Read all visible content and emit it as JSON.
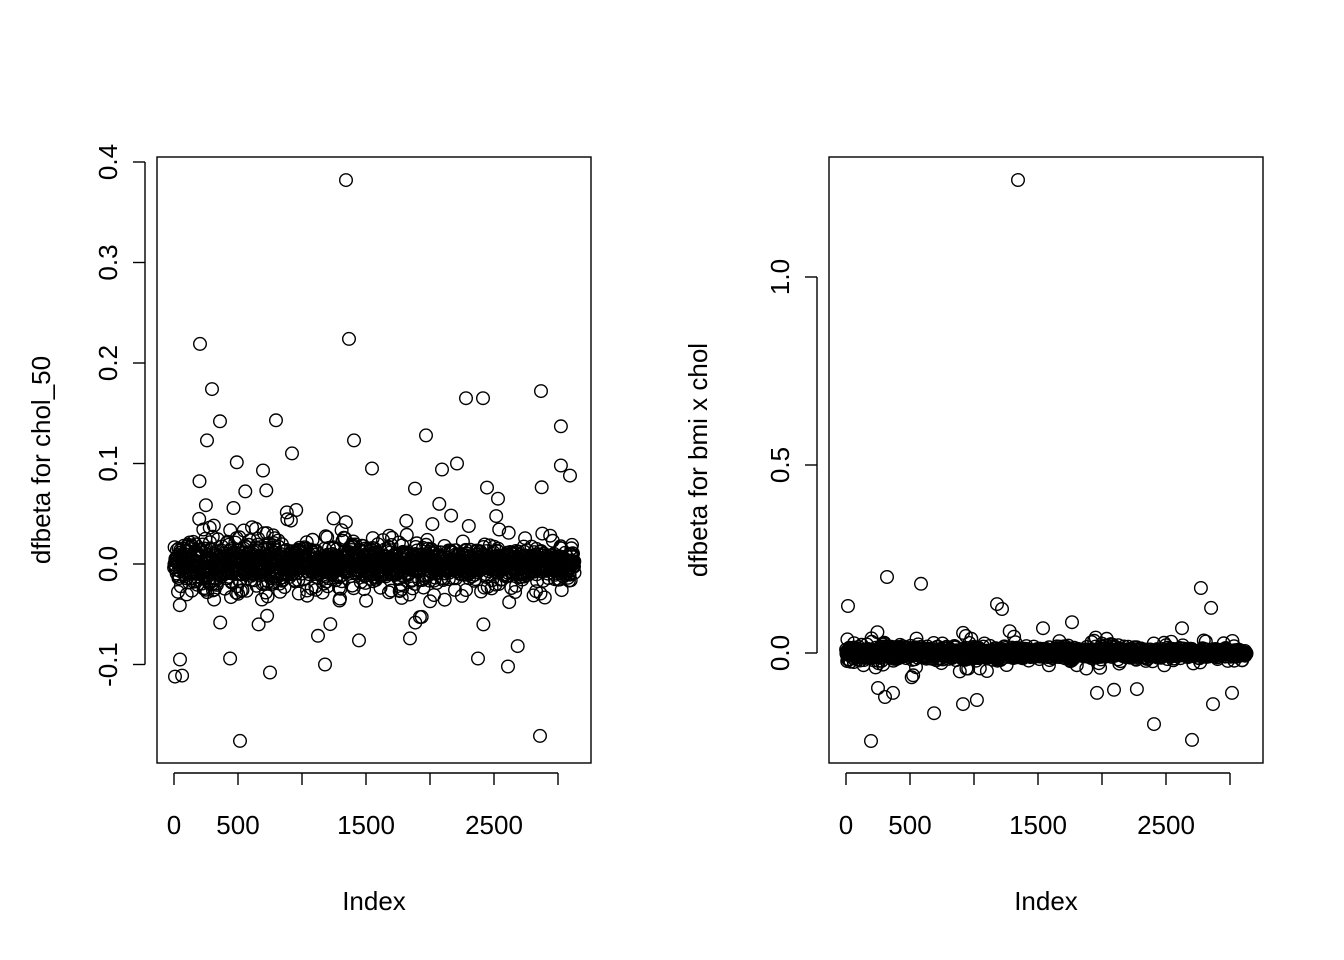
{
  "chart_data": [
    {
      "type": "scatter",
      "xlabel": "Index",
      "ylabel": "dfbeta for chol_50",
      "xlim": [
        1,
        3130
      ],
      "ylim": [
        -0.176,
        0.382
      ],
      "x_ticks": [
        0,
        500,
        1000,
        1500,
        2000,
        2500,
        3000
      ],
      "x_tick_labels": [
        "0",
        "500",
        "",
        "1500",
        "",
        "2500",
        ""
      ],
      "y_ticks": [
        -0.1,
        0.0,
        0.1,
        0.2,
        0.3,
        0.4
      ],
      "y_tick_labels": [
        "-0.1",
        "0.0",
        "0.1",
        "0.2",
        "0.3",
        "0.4"
      ],
      "n_points": 3130,
      "bulk_spread": 0.02,
      "marker": "open-circle",
      "color": "#000000",
      "notable_points": [
        [
          1344,
          0.382
        ],
        [
          1367,
          0.224
        ],
        [
          203,
          0.219
        ],
        [
          297,
          0.174
        ],
        [
          359,
          0.142
        ],
        [
          258,
          0.123
        ],
        [
          797,
          0.143
        ],
        [
          922,
          0.11
        ],
        [
          1406,
          0.123
        ],
        [
          1969,
          0.128
        ],
        [
          2281,
          0.165
        ],
        [
          2414,
          0.165
        ],
        [
          2867,
          0.172
        ],
        [
          3023,
          0.137
        ],
        [
          3023,
          0.098
        ],
        [
          3094,
          0.088
        ],
        [
          2445,
          0.076
        ],
        [
          1883,
          0.075
        ],
        [
          2211,
          0.1
        ],
        [
          516,
          -0.176
        ],
        [
          2859,
          -0.171
        ],
        [
          8,
          -0.112
        ],
        [
          63,
          -0.111
        ],
        [
          47,
          -0.095
        ],
        [
          438,
          -0.094
        ],
        [
          750,
          -0.108
        ],
        [
          1180,
          -0.1
        ],
        [
          2375,
          -0.094
        ],
        [
          2609,
          -0.102
        ],
        [
          1844,
          -0.074
        ],
        [
          1445,
          -0.076
        ],
        [
          695,
          0.093
        ],
        [
          1547,
          0.095
        ],
        [
          2531,
          0.065
        ],
        [
          2094,
          0.094
        ]
      ]
    },
    {
      "type": "scatter",
      "xlabel": "Index",
      "ylabel": "dfbeta for bmi x chol",
      "xlim": [
        1,
        3130
      ],
      "ylim": [
        -0.234,
        1.258
      ],
      "x_ticks": [
        0,
        500,
        1000,
        1500,
        2000,
        2500,
        3000
      ],
      "x_tick_labels": [
        "0",
        "500",
        "",
        "1500",
        "",
        "2500",
        ""
      ],
      "y_ticks": [
        0.0,
        0.5,
        1.0
      ],
      "y_tick_labels": [
        "0.0",
        "0.5",
        "1.0"
      ],
      "n_points": 3130,
      "bulk_spread": 0.015,
      "marker": "open-circle",
      "color": "#000000",
      "notable_points": [
        [
          1344,
          1.258
        ],
        [
          320,
          0.202
        ],
        [
          586,
          0.184
        ],
        [
          2773,
          0.173
        ],
        [
          16,
          0.125
        ],
        [
          2852,
          0.12
        ],
        [
          1180,
          0.13
        ],
        [
          1219,
          0.117
        ],
        [
          195,
          -0.234
        ],
        [
          2703,
          -0.231
        ],
        [
          2406,
          -0.189
        ],
        [
          688,
          -0.16
        ],
        [
          2867,
          -0.136
        ],
        [
          3016,
          -0.106
        ],
        [
          1961,
          -0.106
        ],
        [
          2094,
          -0.098
        ],
        [
          2273,
          -0.096
        ],
        [
          914,
          -0.136
        ],
        [
          1023,
          -0.125
        ],
        [
          367,
          -0.106
        ],
        [
          305,
          -0.117
        ],
        [
          250,
          -0.093
        ],
        [
          1539,
          0.066
        ],
        [
          1766,
          0.082
        ],
        [
          2625,
          0.066
        ]
      ]
    }
  ]
}
